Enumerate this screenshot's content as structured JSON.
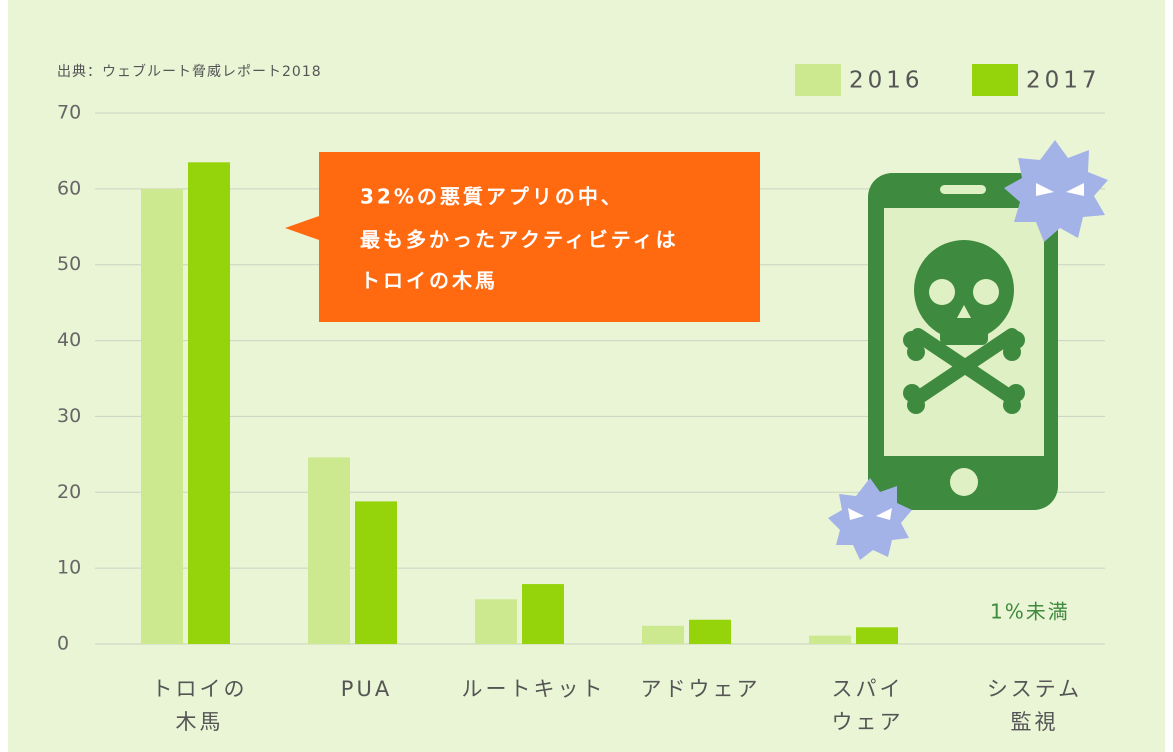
{
  "chart_data": {
    "type": "bar",
    "source": "出典：ウェブルート脅威レポート2018",
    "categories": [
      [
        "トロイの",
        "木馬"
      ],
      [
        "PUA"
      ],
      [
        "ルートキット"
      ],
      [
        "アドウェア"
      ],
      [
        "スパイ",
        "ウェア"
      ],
      [
        "システム",
        "監視"
      ]
    ],
    "series": [
      {
        "name": "2016",
        "color": "#cde98f",
        "values": [
          60,
          24.6,
          5.9,
          2.4,
          1.1,
          null
        ]
      },
      {
        "name": "2017",
        "color": "#95d40a",
        "values": [
          63.5,
          18.8,
          7.9,
          3.2,
          2.2,
          null
        ]
      }
    ],
    "ylim": [
      0,
      70
    ],
    "yticks": [
      0,
      10,
      20,
      30,
      40,
      50,
      60,
      70
    ],
    "grid": true,
    "legend": "top-right",
    "callout": [
      "32%の悪質アプリの中、",
      "最も多かったアクティビティは",
      "トロイの木馬"
    ],
    "note": "1%未満"
  }
}
